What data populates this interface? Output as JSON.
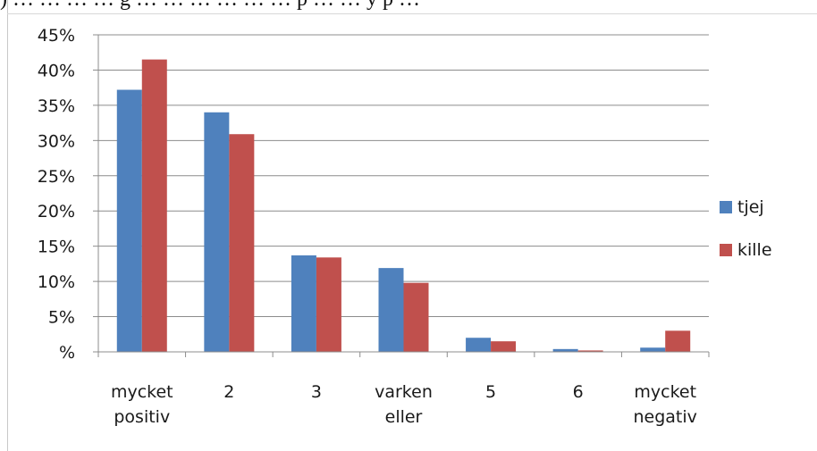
{
  "header_fragment": ") … … … … g … … … … … … p … … y p …",
  "chart_data": {
    "type": "bar",
    "categories": [
      [
        "mycket",
        "positiv"
      ],
      [
        "2"
      ],
      [
        "3"
      ],
      [
        "varken",
        "eller"
      ],
      [
        "5"
      ],
      [
        "6"
      ],
      [
        "mycket",
        "negativ"
      ]
    ],
    "series": [
      {
        "name": "tjej",
        "color": "#4f81bd",
        "values": [
          37.2,
          34.0,
          13.7,
          11.9,
          2.0,
          0.4,
          0.6
        ]
      },
      {
        "name": "kille",
        "color": "#c0504d",
        "values": [
          41.5,
          30.9,
          13.4,
          9.8,
          1.5,
          0.2,
          3.0
        ]
      }
    ],
    "y_ticks": [
      "45%",
      "40%",
      "35%",
      "30%",
      "25%",
      "20%",
      "15%",
      "10%",
      "5%",
      "%"
    ],
    "ylim": [
      0,
      45
    ],
    "grid": true,
    "legend_position": "right"
  }
}
